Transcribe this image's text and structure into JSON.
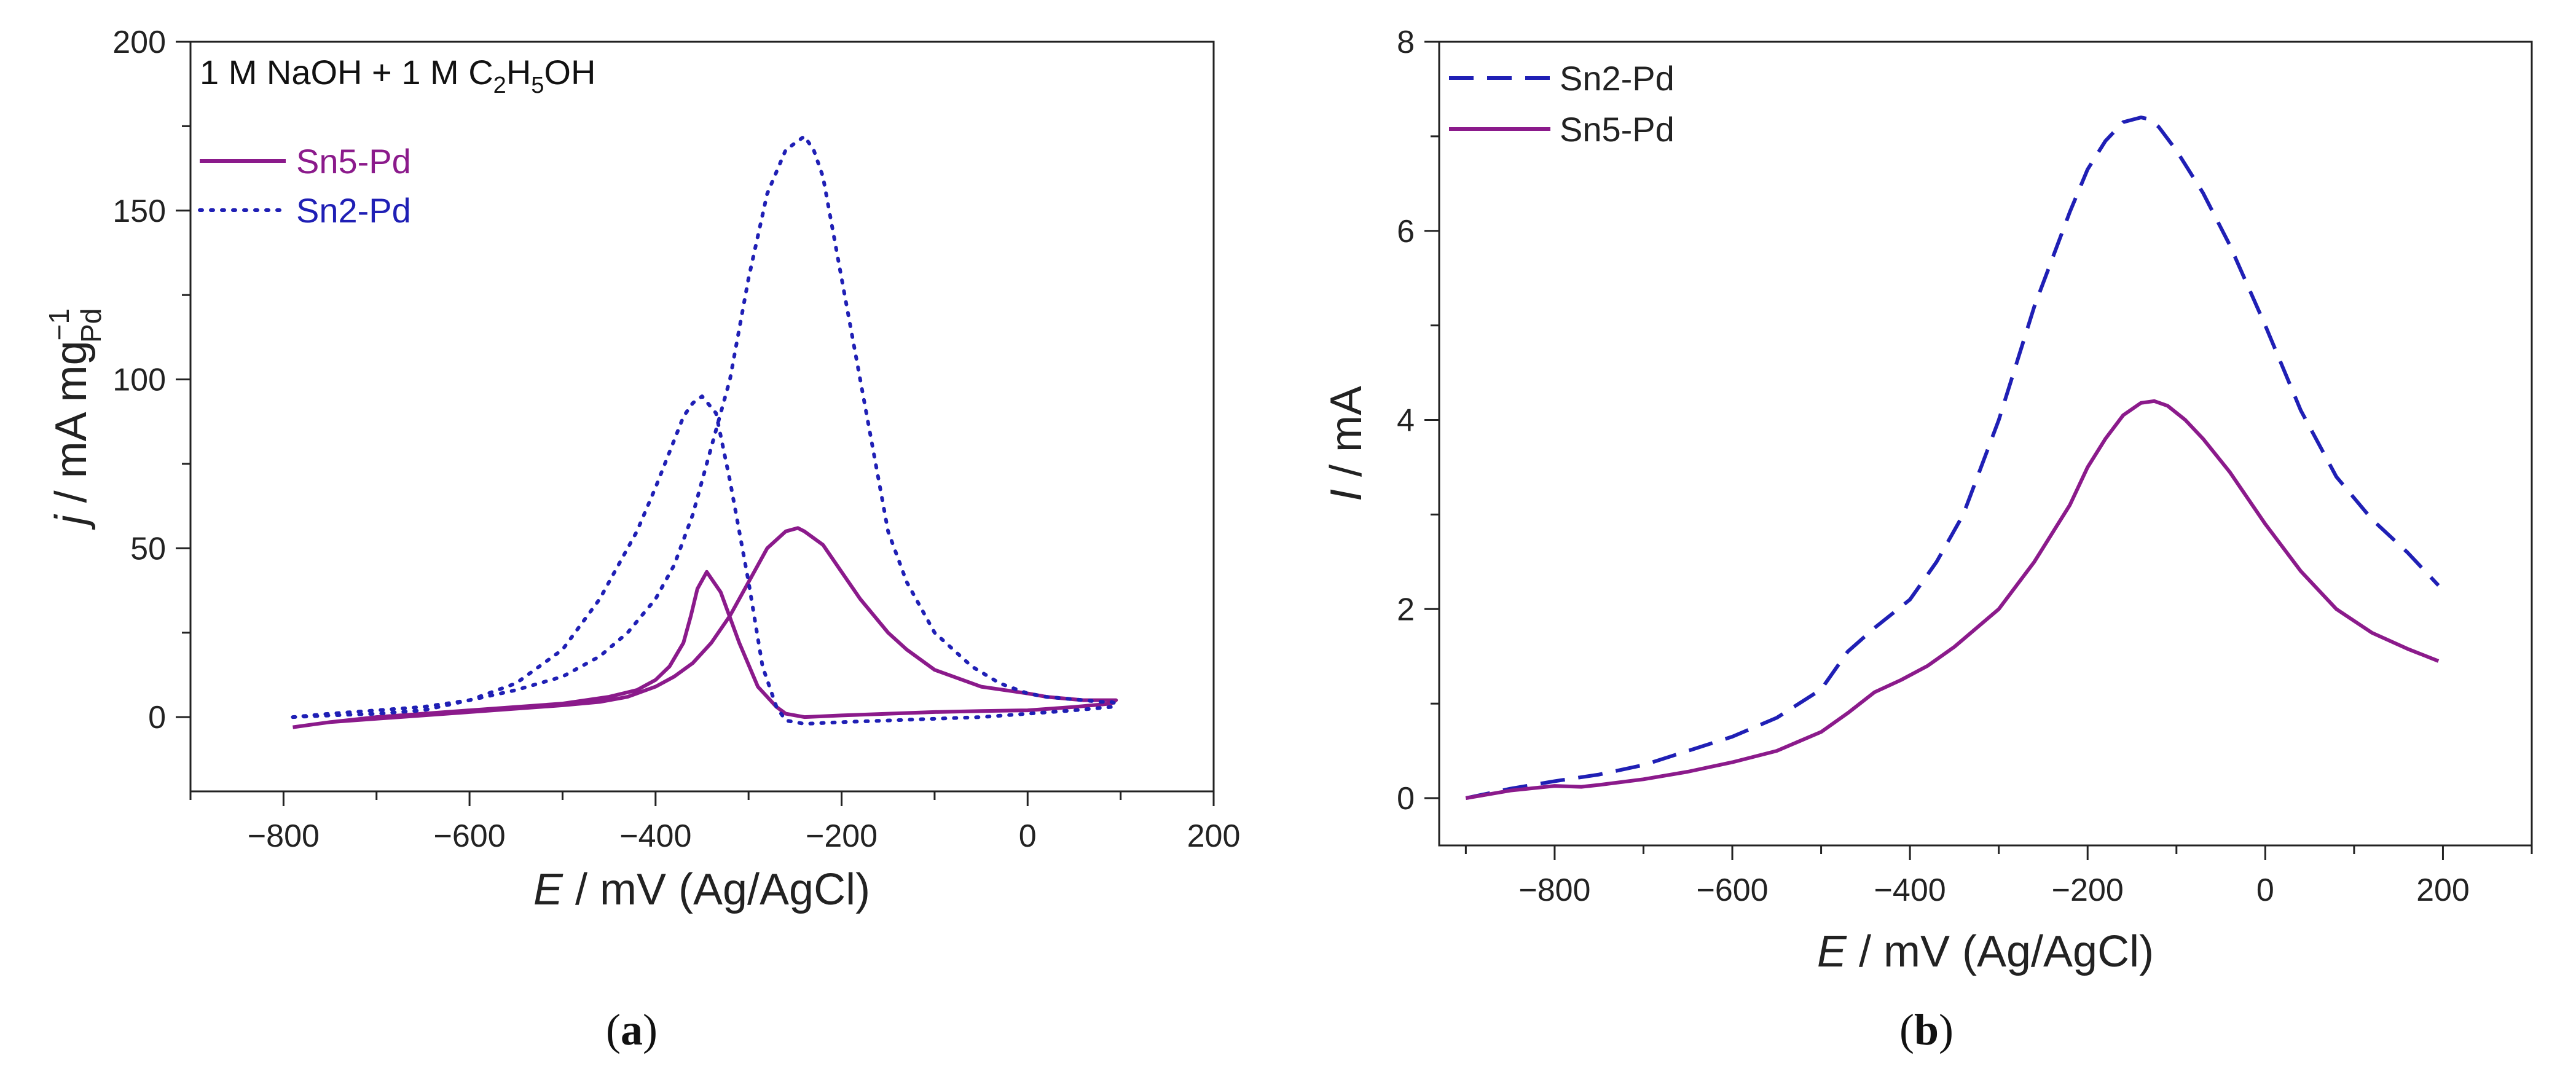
{
  "colors": {
    "sn5": "#8B1A8B",
    "sn2": "#1F1FB5",
    "axis": "#222222"
  },
  "chart_data": [
    {
      "type": "line",
      "panel_caption": {
        "open": "(",
        "letter": "a",
        "close": ")"
      },
      "annotation": {
        "parts": [
          {
            "text": "1 M NaOH + 1 M C",
            "sub": false
          },
          {
            "text": "2",
            "sub": true
          },
          {
            "text": "H",
            "sub": false
          },
          {
            "text": "5",
            "sub": true
          },
          {
            "text": "OH",
            "sub": false
          }
        ]
      },
      "xlabel": {
        "italic": "E",
        "rest": " / mV (Ag/AgCl)"
      },
      "ylabel": {
        "italic": "j",
        "rest": " / mA mg",
        "sup": "−1",
        "sub": "Pd"
      },
      "xlim": [
        -900,
        200
      ],
      "ylim": [
        -22,
        200
      ],
      "xticks": [
        -800,
        -600,
        -400,
        -200,
        0,
        200
      ],
      "xtick_labels": [
        "−800",
        "−600",
        "−400",
        "−200",
        "0",
        "200"
      ],
      "yticks": [
        0,
        50,
        100,
        150,
        200
      ],
      "ytick_labels": [
        "0",
        "50",
        "100",
        "150",
        "200"
      ],
      "legend_position": "top-left",
      "series": [
        {
          "name": "Sn5-Pd",
          "color_key": "sn5",
          "style": "solid",
          "x": [
            -790,
            -750,
            -700,
            -650,
            -600,
            -550,
            -500,
            -450,
            -420,
            -400,
            -385,
            -370,
            -362,
            -355,
            -345,
            -330,
            -310,
            -290,
            -270,
            -260,
            -240,
            -200,
            -150,
            -100,
            -50,
            0,
            50,
            90,
            95,
            90,
            80,
            60,
            40,
            20,
            0,
            -50,
            -100,
            -130,
            -150,
            -180,
            -200,
            -220,
            -240,
            -247,
            -260,
            -280,
            -300,
            -320,
            -340,
            -360,
            -380,
            -400,
            -430,
            -460,
            -500,
            -550,
            -600,
            -650,
            -700,
            -750,
            -790
          ],
          "y": [
            -3,
            -1.5,
            0,
            1,
            2,
            3,
            4,
            6,
            8,
            11,
            15,
            22,
            30,
            38,
            43,
            37,
            22,
            9,
            3,
            1,
            0,
            0.5,
            1,
            1.5,
            1.8,
            2,
            3,
            4,
            5,
            5,
            5,
            5,
            5.5,
            6,
            7,
            9,
            14,
            20,
            25,
            35,
            43,
            51,
            55,
            56,
            55,
            50,
            40,
            30,
            22,
            16,
            12,
            9,
            6,
            4.5,
            3.5,
            2.5,
            1.5,
            0.5,
            -0.5,
            -1.5,
            -3
          ]
        },
        {
          "name": "Sn2-Pd",
          "color_key": "sn2",
          "style": "dotted",
          "x": [
            -790,
            -750,
            -700,
            -650,
            -600,
            -550,
            -500,
            -460,
            -420,
            -400,
            -380,
            -370,
            -360,
            -350,
            -335,
            -320,
            -300,
            -285,
            -270,
            -260,
            -240,
            -200,
            -150,
            -100,
            -50,
            0,
            50,
            90,
            95,
            90,
            80,
            60,
            40,
            20,
            0,
            -30,
            -60,
            -100,
            -130,
            -150,
            -160,
            -180,
            -200,
            -220,
            -230,
            -240,
            -260,
            -280,
            -300,
            -320,
            -340,
            -360,
            -380,
            -400,
            -430,
            -460,
            -500,
            -550,
            -600,
            -650,
            -700,
            -750,
            -790
          ],
          "y": [
            0,
            0.5,
            1,
            2,
            5,
            10,
            20,
            35,
            55,
            68,
            82,
            89,
            93,
            95,
            90,
            70,
            40,
            15,
            3,
            -1,
            -2,
            -1.5,
            -1,
            -0.5,
            0,
            1,
            2,
            3,
            4,
            4.5,
            4.5,
            5,
            5.5,
            6,
            7,
            10,
            15,
            25,
            40,
            55,
            70,
            100,
            130,
            160,
            168,
            172,
            168,
            155,
            130,
            100,
            80,
            60,
            45,
            35,
            25,
            18,
            12,
            8,
            5,
            3,
            2,
            1,
            0
          ]
        }
      ]
    },
    {
      "type": "line",
      "panel_caption": {
        "open": "(",
        "letter": "b",
        "close": ")"
      },
      "xlabel": {
        "italic": "E",
        "rest": " / mV (Ag/AgCl)"
      },
      "ylabel": {
        "italic": "I",
        "rest": " / mA"
      },
      "xlim": [
        -930,
        300
      ],
      "ylim": [
        -0.5,
        8
      ],
      "xticks": [
        -800,
        -600,
        -400,
        -200,
        0,
        200
      ],
      "xtick_labels": [
        "−800",
        "−600",
        "−400",
        "−200",
        "0",
        "200"
      ],
      "yticks": [
        0,
        2,
        4,
        6,
        8
      ],
      "ytick_labels": [
        "0",
        "2",
        "4",
        "6",
        "8"
      ],
      "legend_position": "top-left",
      "series": [
        {
          "name": "Sn2-Pd",
          "color_key": "sn2",
          "style": "dashed",
          "x": [
            -900,
            -850,
            -800,
            -750,
            -700,
            -650,
            -600,
            -550,
            -500,
            -470,
            -440,
            -400,
            -370,
            -340,
            -300,
            -260,
            -220,
            -200,
            -180,
            -160,
            -140,
            -130,
            -120,
            -100,
            -70,
            -40,
            0,
            40,
            80,
            120,
            160,
            195
          ],
          "y": [
            0,
            0.1,
            0.18,
            0.25,
            0.35,
            0.5,
            0.65,
            0.85,
            1.15,
            1.55,
            1.8,
            2.1,
            2.5,
            3.0,
            4.0,
            5.2,
            6.2,
            6.65,
            6.95,
            7.15,
            7.2,
            7.18,
            7.1,
            6.85,
            6.4,
            5.85,
            5.0,
            4.1,
            3.4,
            2.95,
            2.6,
            2.25
          ]
        },
        {
          "name": "Sn5-Pd",
          "color_key": "sn5",
          "style": "solid",
          "x": [
            -900,
            -850,
            -800,
            -770,
            -750,
            -700,
            -650,
            -600,
            -550,
            -500,
            -470,
            -440,
            -410,
            -380,
            -350,
            -300,
            -260,
            -220,
            -200,
            -180,
            -160,
            -140,
            -125,
            -110,
            -90,
            -70,
            -40,
            0,
            40,
            80,
            120,
            160,
            195
          ],
          "y": [
            0,
            0.08,
            0.13,
            0.12,
            0.14,
            0.2,
            0.28,
            0.38,
            0.5,
            0.7,
            0.9,
            1.12,
            1.25,
            1.4,
            1.6,
            2.0,
            2.5,
            3.1,
            3.5,
            3.8,
            4.05,
            4.18,
            4.2,
            4.15,
            4.0,
            3.8,
            3.45,
            2.9,
            2.4,
            2.0,
            1.75,
            1.58,
            1.45
          ]
        }
      ]
    }
  ]
}
